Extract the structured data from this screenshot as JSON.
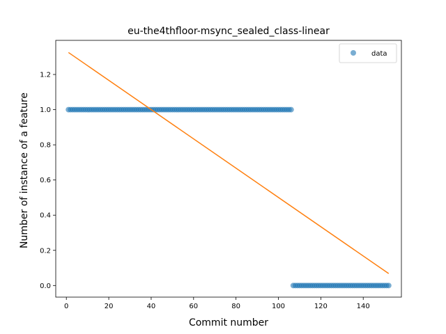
{
  "chart_data": {
    "type": "scatter",
    "title": "eu-the4thfloor-msync_sealed_class-linear",
    "xlabel": "Commit number",
    "ylabel": "Number of instance of a feature",
    "xlim": [
      -5,
      158
    ],
    "ylim": [
      -0.066,
      1.394
    ],
    "xticks": [
      0,
      20,
      40,
      60,
      80,
      100,
      120,
      140
    ],
    "yticks": [
      0.0,
      0.2,
      0.4,
      0.6,
      0.8,
      1.0,
      1.2
    ],
    "ytick_labels": [
      "0.0",
      "0.2",
      "0.4",
      "0.6",
      "0.8",
      "1.0",
      "1.2"
    ],
    "grid": false,
    "legend": {
      "placement": "top-right",
      "entries": [
        "data"
      ]
    },
    "series": [
      {
        "name": "data",
        "kind": "scatter",
        "color": "#1f77b4",
        "segments": [
          {
            "x_start": 1,
            "x_end": 106,
            "y": 1.0
          },
          {
            "x_start": 107,
            "x_end": 152,
            "y": 0.0
          }
        ]
      },
      {
        "kind": "line",
        "color": "#ff7f0e",
        "points": [
          [
            1,
            1.325
          ],
          [
            152,
            0.068
          ]
        ]
      }
    ]
  }
}
